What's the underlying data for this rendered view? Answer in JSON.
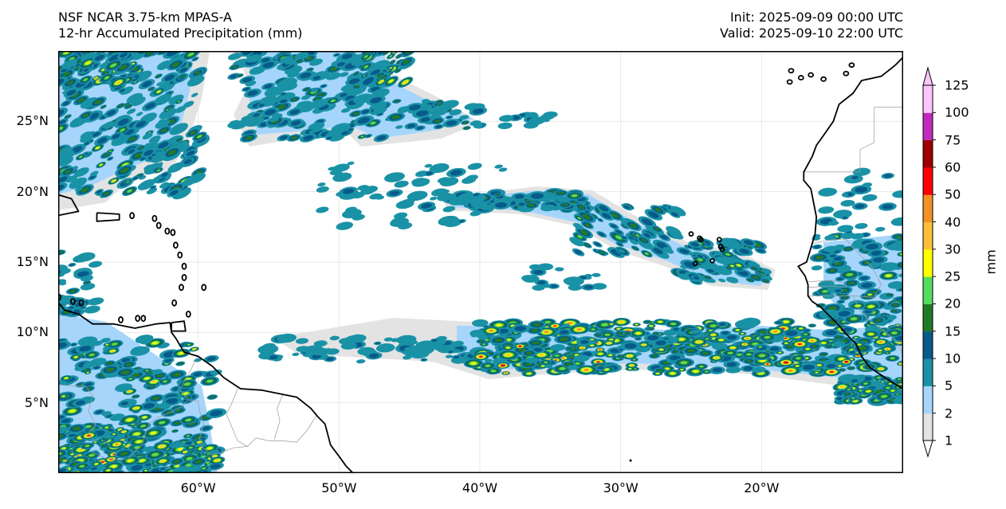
{
  "header": {
    "model_title": "NSF NCAR 3.75-km MPAS-A",
    "field_title": "12-hr Accumulated Precipitation (mm)",
    "init_time": "Init: 2025-09-09 00:00 UTC",
    "valid_time": "Valid: 2025-09-10 22:00 UTC"
  },
  "map": {
    "lon_range": [
      -70,
      -10
    ],
    "lat_range": [
      0,
      30
    ],
    "lat_ticks": [
      {
        "value": 25,
        "label": "25°N"
      },
      {
        "value": 20,
        "label": "20°N"
      },
      {
        "value": 15,
        "label": "15°N"
      },
      {
        "value": 10,
        "label": "10°N"
      },
      {
        "value": 5,
        "label": "5°N"
      }
    ],
    "lon_ticks": [
      {
        "value": -60,
        "label": "60°W"
      },
      {
        "value": -50,
        "label": "50°W"
      },
      {
        "value": -40,
        "label": "40°W"
      },
      {
        "value": -30,
        "label": "30°W"
      },
      {
        "value": -20,
        "label": "20°W"
      }
    ],
    "coastline_color": "#000000",
    "border_color": "#999999",
    "gridline_color": "#e8e8e8"
  },
  "colorbar": {
    "unit_label": "mm",
    "extend": "both",
    "levels": [
      {
        "value": 1,
        "label": "1"
      },
      {
        "value": 2,
        "label": "2"
      },
      {
        "value": 5,
        "label": "5"
      },
      {
        "value": 10,
        "label": "10"
      },
      {
        "value": 15,
        "label": "15"
      },
      {
        "value": 20,
        "label": "20"
      },
      {
        "value": 25,
        "label": "25"
      },
      {
        "value": 30,
        "label": "30"
      },
      {
        "value": 40,
        "label": "40"
      },
      {
        "value": 50,
        "label": "50"
      },
      {
        "value": 60,
        "label": "60"
      },
      {
        "value": 75,
        "label": "75"
      },
      {
        "value": 100,
        "label": "100"
      },
      {
        "value": 125,
        "label": "125"
      }
    ],
    "colors": [
      "#e3e3e3",
      "#a6d5fb",
      "#1a92a6",
      "#075a8a",
      "#237a24",
      "#55dc5e",
      "#ffff00",
      "#fbbf3a",
      "#f19126",
      "#fe0000",
      "#9c0000",
      "#c12bbd",
      "#fcc6fc"
    ],
    "under_color": "#ffffff",
    "over_color": "#fcc6fc"
  }
}
